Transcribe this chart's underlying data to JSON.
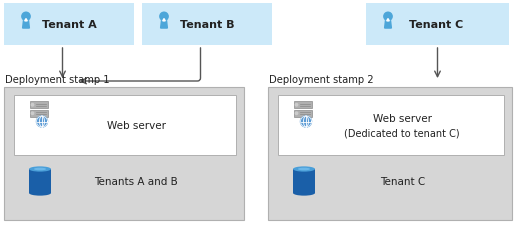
{
  "bg_color": "#ffffff",
  "tenant_box_color": "#cce9f9",
  "stamp_box_color": "#d6d6d6",
  "stamp_box_border": "#b0b0b0",
  "webserver_box_color": "#ffffff",
  "webserver_box_border": "#b0b0b0",
  "tenant_labels": [
    "Tenant A",
    "Tenant B",
    "Tenant C"
  ],
  "stamp1_label": "Deployment stamp 1",
  "stamp2_label": "Deployment stamp 2",
  "webserver1_label": "Web server",
  "webserver2_line1": "Web server",
  "webserver2_line2": "(Dedicated to tenant C)",
  "db1_label": "Tenants A and B",
  "db2_label": "Tenant C",
  "arrow_color": "#555555",
  "text_color": "#222222",
  "person_color": "#4da6d9",
  "person_color_dark": "#2b7fbf",
  "db_color": "#1a5fa8",
  "db_top_color": "#4a9fd9",
  "server_color1": "#909090",
  "server_color2": "#b0b0b0",
  "globe_color": "#5b9bd5"
}
